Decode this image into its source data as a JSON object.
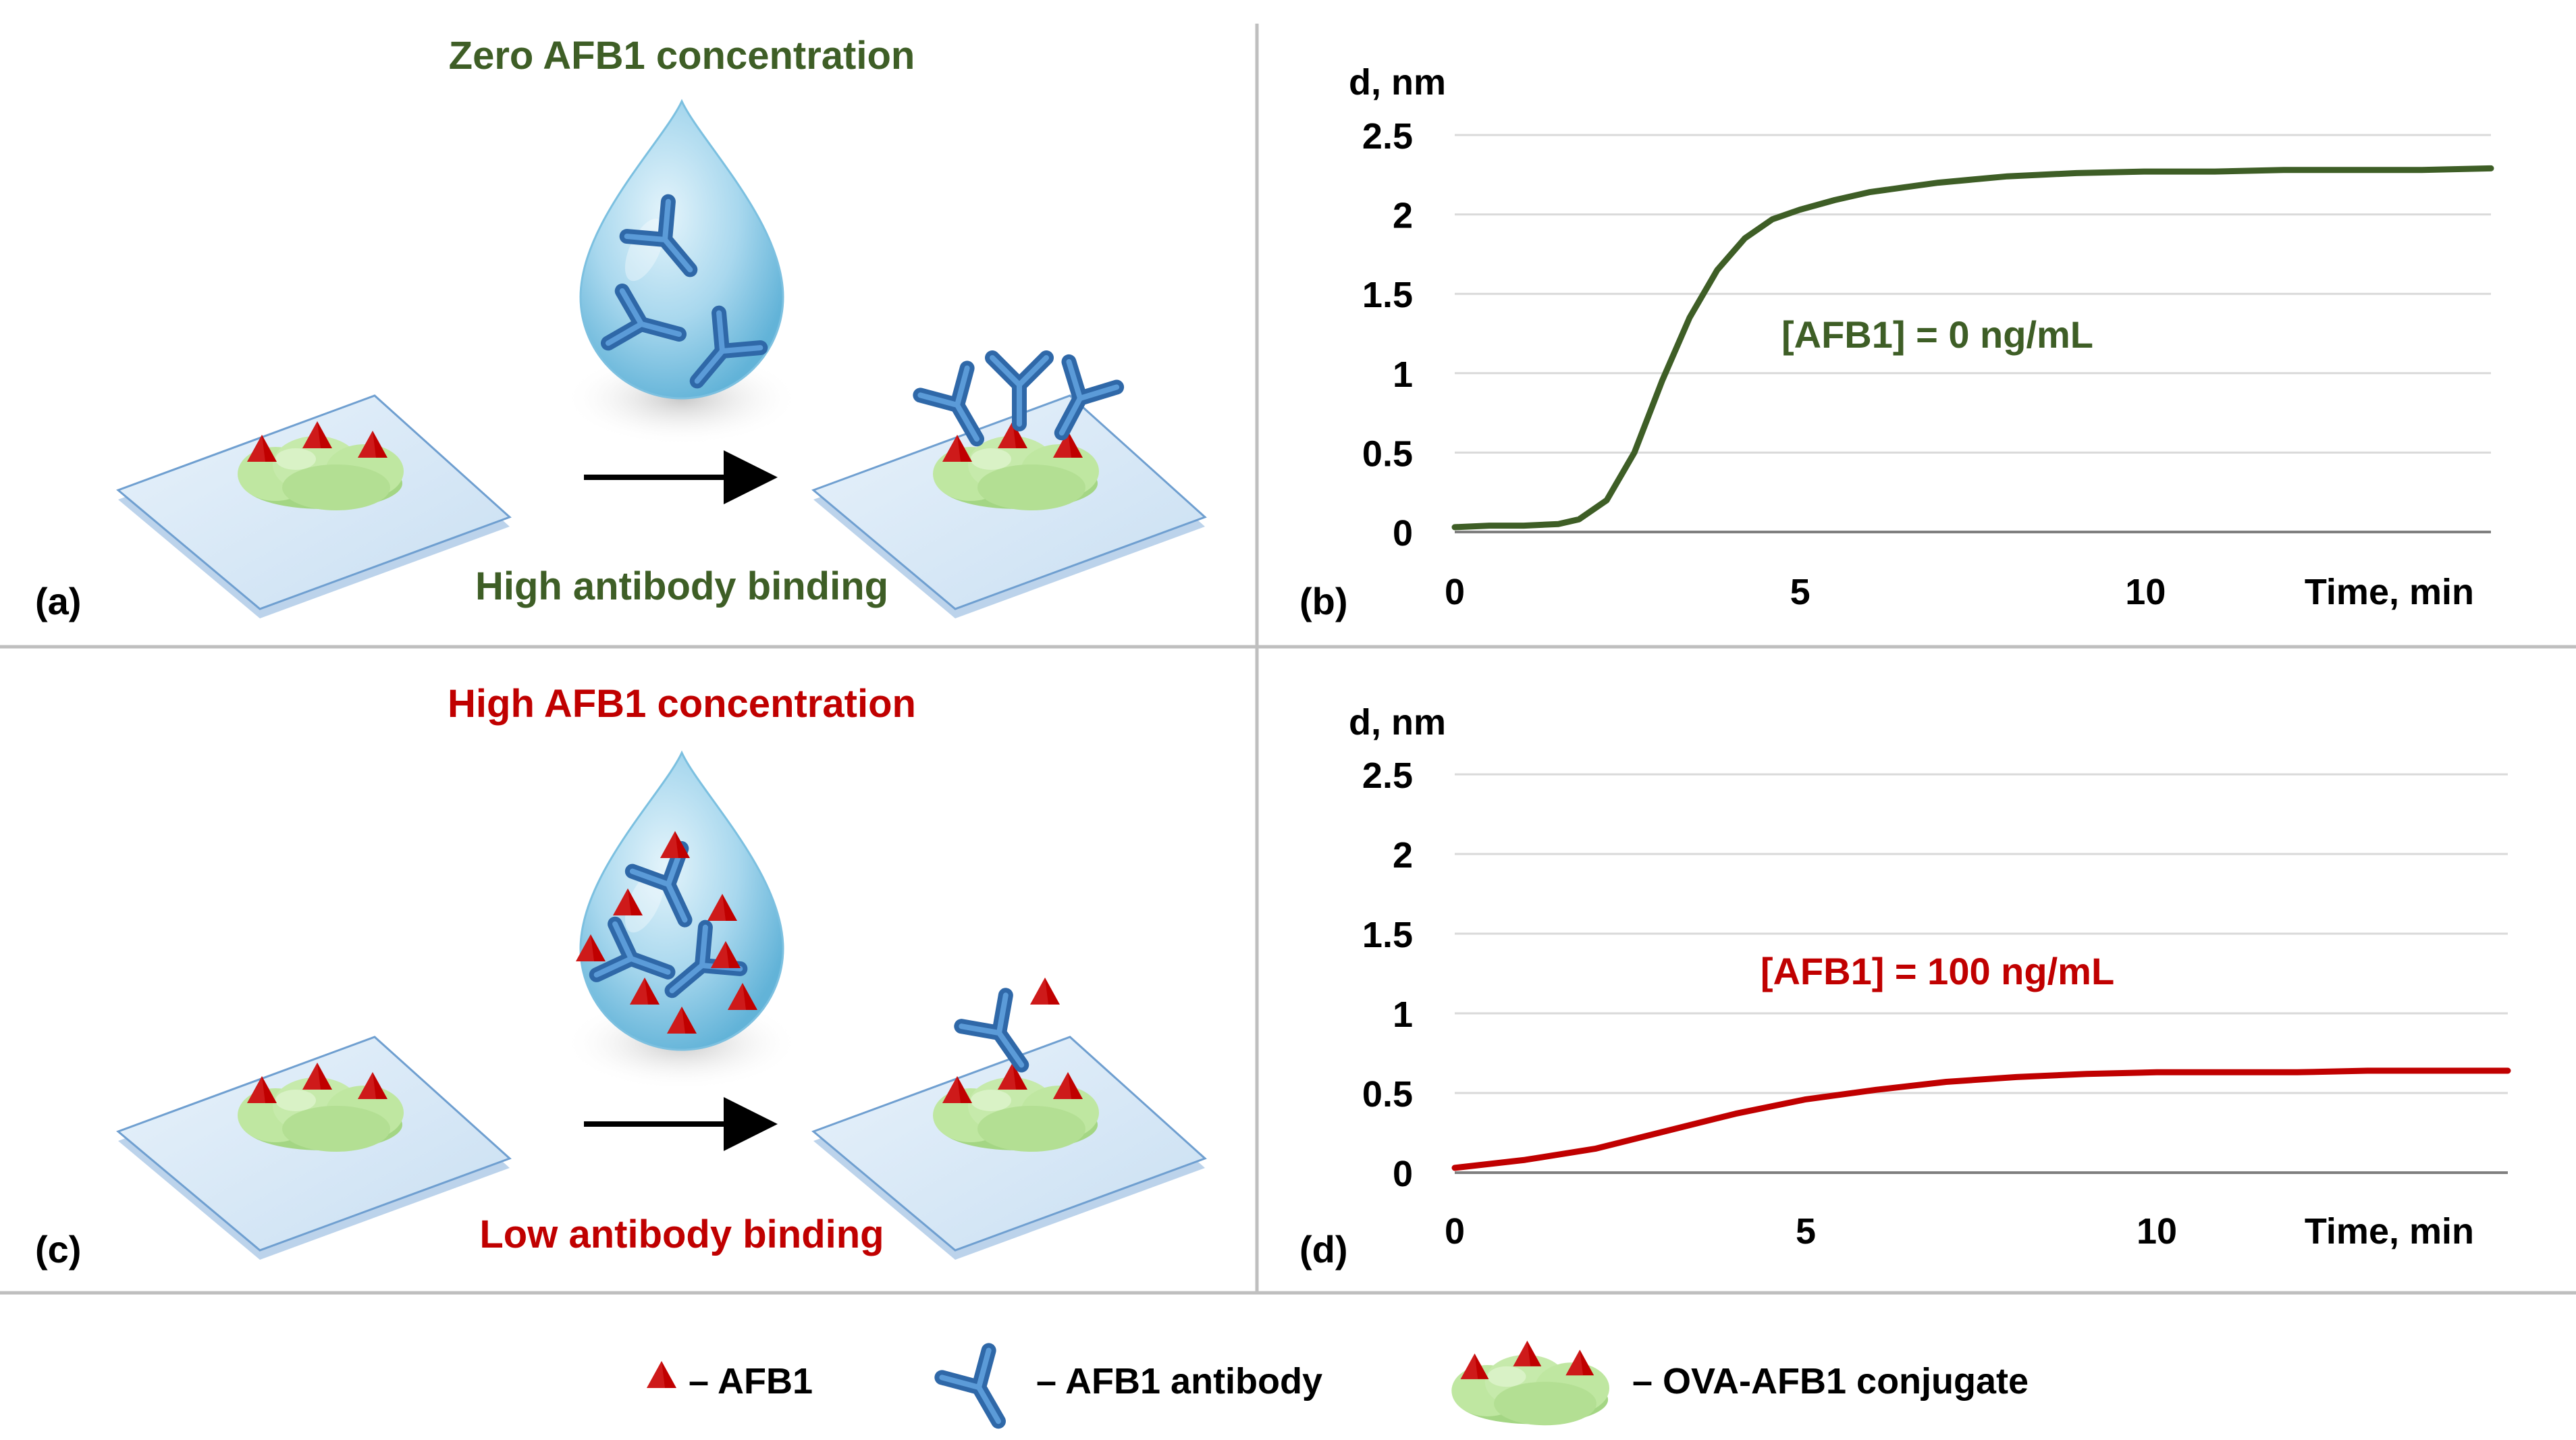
{
  "colors": {
    "green": "#3e5e26",
    "red": "#c00000",
    "grid": "#d9d9d9",
    "divider": "#bfbfbf",
    "axis": "#000000",
    "antibody": "#3f7fc4",
    "afb1": "#c00000",
    "conjugate": "#b9e39a",
    "slide": "#d6e8f7"
  },
  "panel_a": {
    "label": "(a)",
    "title": "Zero AFB1 concentration",
    "caption": "High antibody binding"
  },
  "panel_c": {
    "label": "(c)",
    "title": "High AFB1 concentration",
    "caption": "Low antibody binding"
  },
  "legend": {
    "afb1": "– AFB1",
    "antibody": "– AFB1 antibody",
    "conjugate": "– OVA-AFB1 conjugate"
  },
  "chart_data": [
    {
      "panel": "(b)",
      "type": "line",
      "ylabel": "d, nm",
      "xlabel": "Time, min",
      "annotation": "[AFB1] = 0 ng/mL",
      "series_color": "#3e5e26",
      "xlim": [
        0,
        15
      ],
      "ylim": [
        0,
        2.5
      ],
      "x_ticks": [
        0,
        5,
        10
      ],
      "y_ticks": [
        0,
        0.5,
        1,
        1.5,
        2,
        2.5
      ],
      "y_tick_labels": [
        "0",
        "0.5",
        "1",
        "1.5",
        "2",
        "2.5"
      ],
      "grid": true,
      "series": [
        {
          "name": "[AFB1] = 0 ng/mL",
          "x": [
            0,
            0.5,
            1,
            1.5,
            1.8,
            2.2,
            2.6,
            3.0,
            3.4,
            3.8,
            4.2,
            4.6,
            5.0,
            5.5,
            6.0,
            6.5,
            7.0,
            7.5,
            8.0,
            9.0,
            10.0,
            11.0,
            12.0,
            13.0,
            14.0,
            15.0
          ],
          "y": [
            0.03,
            0.04,
            0.04,
            0.05,
            0.08,
            0.2,
            0.5,
            0.95,
            1.35,
            1.65,
            1.85,
            1.97,
            2.03,
            2.09,
            2.14,
            2.17,
            2.2,
            2.22,
            2.24,
            2.26,
            2.27,
            2.27,
            2.28,
            2.28,
            2.28,
            2.29
          ]
        }
      ]
    },
    {
      "panel": "(d)",
      "type": "line",
      "ylabel": "d, nm",
      "xlabel": "Time, min",
      "annotation": "[AFB1] = 100 ng/mL",
      "series_color": "#c00000",
      "xlim": [
        0,
        15
      ],
      "ylim": [
        0,
        2.5
      ],
      "x_ticks": [
        0,
        5,
        10
      ],
      "y_ticks": [
        0,
        0.5,
        1,
        1.5,
        2,
        2.5
      ],
      "y_tick_labels": [
        "0",
        "0.5",
        "1",
        "1.5",
        "2",
        "2.5"
      ],
      "grid": true,
      "series": [
        {
          "name": "[AFB1] = 100 ng/mL",
          "x": [
            0,
            1,
            2,
            3,
            4,
            5,
            6,
            7,
            8,
            9,
            10,
            11,
            12,
            13,
            14,
            15
          ],
          "y": [
            0.03,
            0.08,
            0.15,
            0.26,
            0.37,
            0.46,
            0.52,
            0.57,
            0.6,
            0.62,
            0.63,
            0.63,
            0.63,
            0.64,
            0.64,
            0.64
          ]
        }
      ]
    }
  ]
}
